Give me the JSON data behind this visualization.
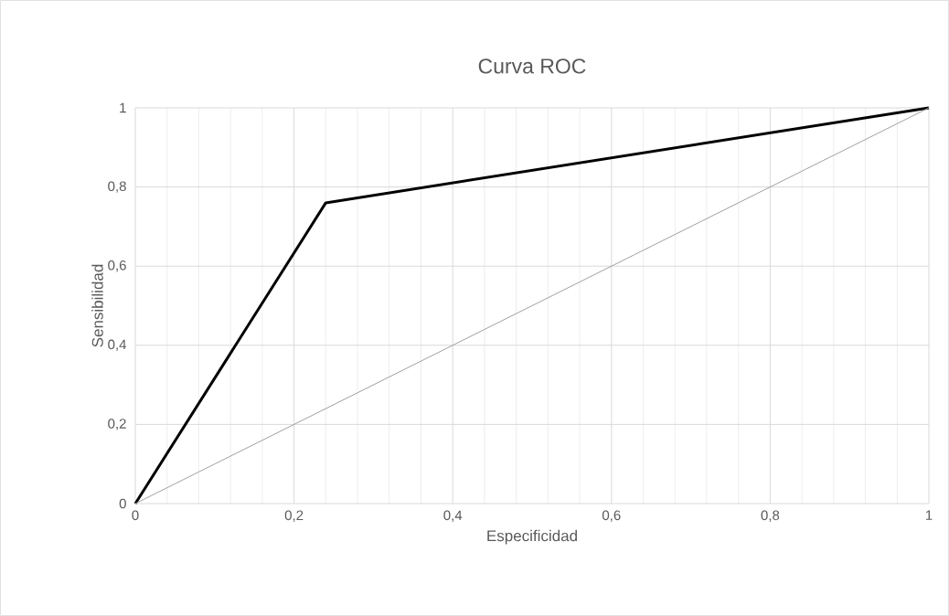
{
  "chart_data": {
    "type": "line",
    "title": "Curva ROC",
    "xlabel": "Especificidad",
    "ylabel": "Sensibilidad",
    "xlim": [
      0,
      1
    ],
    "ylim": [
      0,
      1
    ],
    "xticks": [
      0,
      {
        "value": 0.2,
        "label": "0,2"
      },
      {
        "value": 0.4,
        "label": "0,4"
      },
      {
        "value": 0.6,
        "label": "0,6"
      },
      {
        "value": 0.8,
        "label": "0,8"
      },
      1
    ],
    "yticks": [
      0,
      {
        "value": 0.2,
        "label": "0,2"
      },
      {
        "value": 0.4,
        "label": "0,4"
      },
      {
        "value": 0.6,
        "label": "0,6"
      },
      {
        "value": 0.8,
        "label": "0,8"
      },
      1
    ],
    "grid": true,
    "legend": false,
    "marker": "none",
    "line_style": "solid",
    "series": [
      {
        "color": "#000000",
        "x": [
          0,
          0.24,
          1
        ],
        "values": [
          0,
          0.76,
          1
        ]
      },
      {
        "color": "#a0a0a0",
        "x": [
          0,
          1
        ],
        "values": [
          0,
          1
        ]
      }
    ]
  }
}
